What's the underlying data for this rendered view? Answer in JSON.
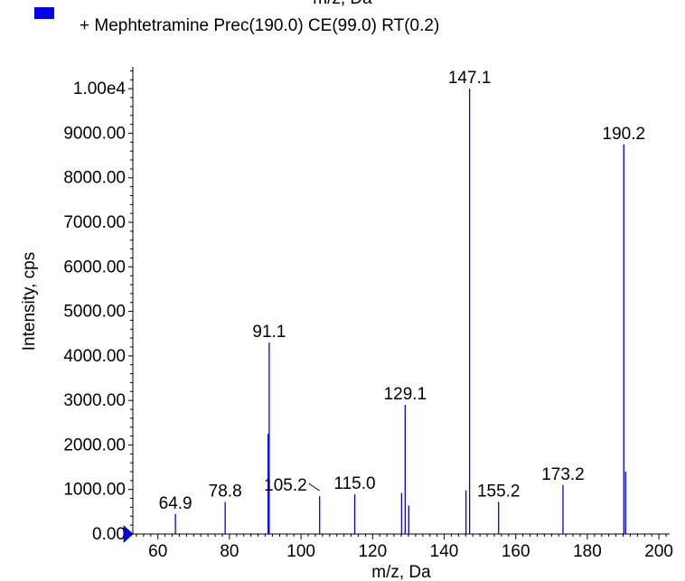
{
  "chart_data": {
    "type": "bar",
    "cut_off_title": "m/z, Da",
    "legend": {
      "label": "+ Mephtetramine Prec(190.0) CE(99.0) RT(0.2)",
      "color": "#0000ee"
    },
    "xlabel": "m/z, Da",
    "ylabel": "Intensity, cps",
    "xlim": [
      53,
      203
    ],
    "ylim": [
      0,
      10450
    ],
    "x_ticks": [
      60,
      80,
      100,
      120,
      140,
      160,
      180,
      200
    ],
    "y_ticks": [
      {
        "value": 0,
        "label": "0.00"
      },
      {
        "value": 1000,
        "label": "1000.00"
      },
      {
        "value": 2000,
        "label": "2000.00"
      },
      {
        "value": 3000,
        "label": "3000.00"
      },
      {
        "value": 4000,
        "label": "4000.00"
      },
      {
        "value": 5000,
        "label": "5000.00"
      },
      {
        "value": 6000,
        "label": "6000.00"
      },
      {
        "value": 7000,
        "label": "7000.00"
      },
      {
        "value": 8000,
        "label": "8000.00"
      },
      {
        "value": 9000,
        "label": "9000.00"
      },
      {
        "value": 10000,
        "label": "1.00e4"
      }
    ],
    "series": [
      {
        "color": "#0000ee",
        "peaks": [
          {
            "x": 64.9,
            "y": 450,
            "label": "64.9"
          },
          {
            "x": 78.8,
            "y": 720,
            "label": "78.8"
          },
          {
            "x": 90.8,
            "y": 2250
          },
          {
            "x": 91.1,
            "y": 4300,
            "label": "91.1"
          },
          {
            "x": 105.2,
            "y": 850,
            "label": "105.2"
          },
          {
            "x": 115.0,
            "y": 890,
            "label": "115.0"
          },
          {
            "x": 128.1,
            "y": 920
          },
          {
            "x": 129.1,
            "y": 2900,
            "label": "129.1"
          },
          {
            "x": 130.1,
            "y": 640
          },
          {
            "x": 146.1,
            "y": 980
          },
          {
            "x": 147.1,
            "y": 10000,
            "label": "147.1"
          },
          {
            "x": 155.2,
            "y": 720,
            "label": "155.2"
          },
          {
            "x": 173.2,
            "y": 1100,
            "label": "173.2"
          },
          {
            "x": 190.2,
            "y": 8750,
            "label": "190.2"
          },
          {
            "x": 190.7,
            "y": 1400
          }
        ]
      }
    ]
  }
}
